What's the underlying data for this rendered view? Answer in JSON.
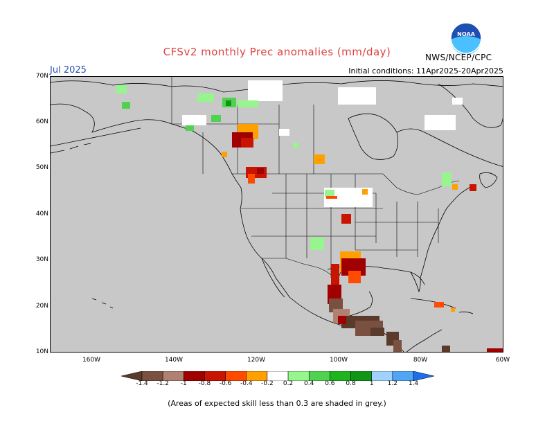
{
  "title": "CFSv2 monthly Prec anomalies (mm/day)",
  "month": "Jul 2025",
  "initial_conditions": "Initial conditions: 11Apr2025-20Apr2025",
  "agency": "NWS/NCEP/CPC",
  "logo_text": "NOAA",
  "footnote": "(Areas of expected skill less than 0.3 are shaded in grey.)",
  "lat_labels": [
    "70N",
    "60N",
    "50N",
    "40N",
    "30N",
    "20N",
    "10N"
  ],
  "lon_labels": [
    "160W",
    "140W",
    "120W",
    "100W",
    "80W",
    "60W"
  ],
  "colorbar": {
    "labels": [
      "-1.4",
      "-1.2",
      "-1",
      "-0.8",
      "-0.6",
      "-0.4",
      "-0.2",
      "0.2",
      "0.4",
      "0.6",
      "0.8",
      "1",
      "1.2",
      "1.4"
    ],
    "colors": [
      "#5a3a2a",
      "#7a5040",
      "#b08070",
      "#a00000",
      "#c81400",
      "#ff4b00",
      "#ffa000",
      "#ffffff",
      "#96f58c",
      "#50d250",
      "#1eb41e",
      "#0f9616",
      "#a0d2ff",
      "#50a5f5",
      "#1e6eeb"
    ]
  },
  "colors": {
    "grey_mask": "#c8c8c8",
    "title_color": "#e04040",
    "month_color": "#2a4fb0"
  }
}
